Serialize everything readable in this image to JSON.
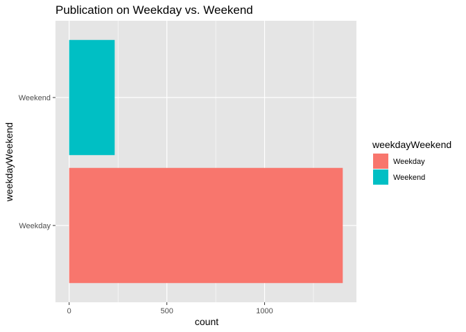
{
  "chart_data": {
    "type": "bar",
    "orientation": "horizontal",
    "title": "Publication on Weekday vs. Weekend",
    "xlabel": "count",
    "ylabel": "weekdayWeekend",
    "categories": [
      "Weekday",
      "Weekend"
    ],
    "values": [
      1400,
      233
    ],
    "colors": [
      "#F8766D",
      "#00BFC4"
    ],
    "xlim": [
      -70,
      1470
    ],
    "x_ticks": [
      0,
      500,
      1000
    ],
    "grid": true,
    "legend": {
      "title": "weekdayWeekend",
      "position": "right",
      "entries": [
        "Weekday",
        "Weekend"
      ]
    }
  },
  "style": {
    "panel_bg": "#E5E5E5",
    "grid_color": "#FFFFFF"
  }
}
